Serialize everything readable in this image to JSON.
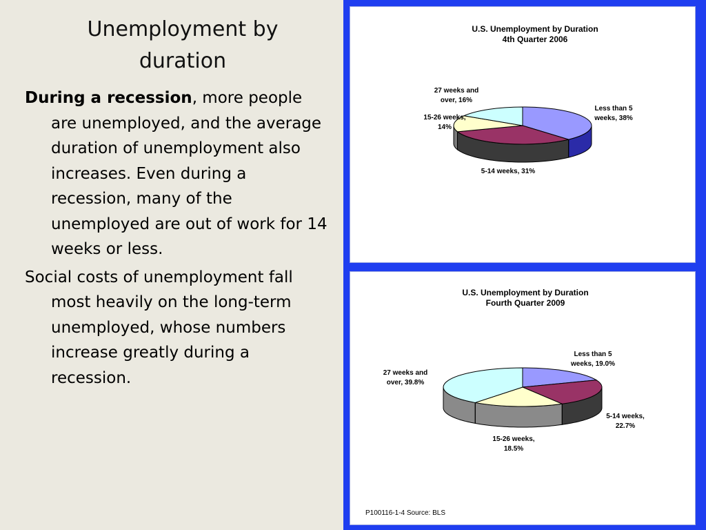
{
  "slide": {
    "title": "Unemployment by duration",
    "para1_bold": "During a recession",
    "para1_rest": ", more people are unemployed, and the average duration of unemployment also increases. Even during a recession, many of the unemployed are out of work for 14 weeks or less.",
    "para2": "Social costs of unemployment fall most heavily on the long-term unemployed, whose numbers increase greatly during a recession."
  },
  "chart_data": [
    {
      "type": "pie",
      "title": [
        "U.S. Unemployment by Duration",
        "4th Quarter 2006"
      ],
      "categories": [
        "Less than 5 weeks",
        "5-14 weeks",
        "15-26 weeks",
        "27 weeks and over"
      ],
      "values": [
        38,
        31,
        14,
        16
      ],
      "labels": [
        [
          "Less than 5",
          "weeks, 38%"
        ],
        [
          "5-14 weeks, 31%"
        ],
        [
          "15-26 weeks,",
          "14%"
        ],
        [
          "27 weeks and",
          "over, 16%"
        ]
      ],
      "colors": [
        "#9999ff",
        "#993366",
        "#ffffcc",
        "#ccffff"
      ],
      "side_colors": [
        "#2b2ba8",
        "#3a3a3a",
        "#7a7a7a",
        "#7a7a7a"
      ]
    },
    {
      "type": "pie",
      "title": [
        "U.S. Unemployment by Duration",
        "Fourth Quarter 2009"
      ],
      "categories": [
        "Less than 5 weeks",
        "5-14 weeks",
        "15-26 weeks",
        "27 weeks and over"
      ],
      "values": [
        19.0,
        22.7,
        18.5,
        39.8
      ],
      "labels": [
        [
          "Less than 5",
          "weeks, 19.0%"
        ],
        [
          "5-14 weeks,",
          "22.7%"
        ],
        [
          "15-26 weeks,",
          "18.5%"
        ],
        [
          "27 weeks and",
          "over, 39.8%"
        ]
      ],
      "colors": [
        "#9999ff",
        "#993366",
        "#ffffcc",
        "#ccffff"
      ],
      "side_colors": [
        "#2b2ba8",
        "#3a3a3a",
        "#8a8a8a",
        "#8a8a8a"
      ],
      "source": "P100116-1-4 Source: BLS"
    }
  ]
}
